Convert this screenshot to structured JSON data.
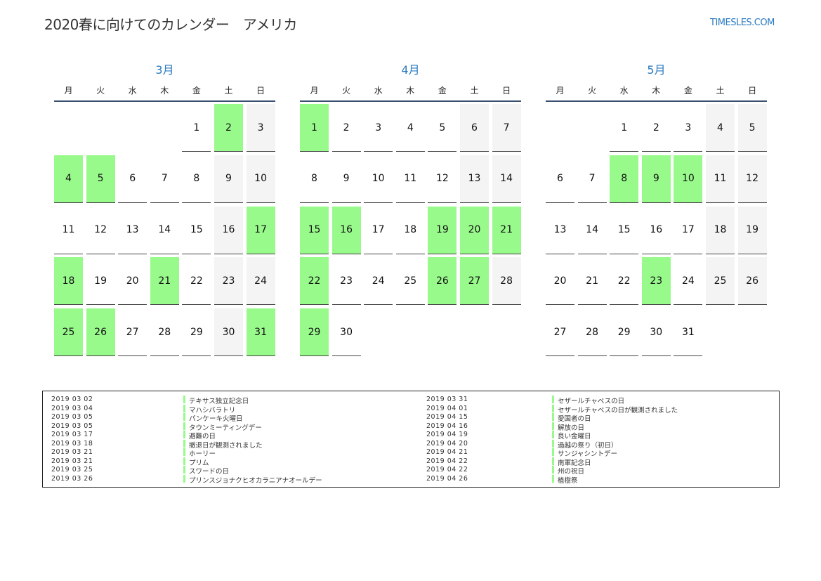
{
  "header": {
    "title": "2020春に向けてのカレンダー　アメリカ",
    "brand": "TIMESLES.COM"
  },
  "weekdays": [
    "月",
    "火",
    "水",
    "木",
    "金",
    "土",
    "日"
  ],
  "colors": {
    "highlight": "#99fa8c",
    "weekend": "#f4f4f4",
    "accent": "#2a7ac0"
  },
  "months": [
    {
      "label": "3月",
      "start_weekday_index": 4,
      "days": 31,
      "highlighted": [
        2,
        4,
        5,
        17,
        18,
        21,
        25,
        26,
        31
      ]
    },
    {
      "label": "4月",
      "start_weekday_index": 0,
      "days": 30,
      "highlighted": [
        1,
        15,
        16,
        19,
        20,
        21,
        22,
        26,
        27,
        29
      ]
    },
    {
      "label": "5月",
      "start_weekday_index": 2,
      "days": 31,
      "highlighted": [
        8,
        9,
        10,
        23
      ]
    }
  ],
  "holidays_left": [
    {
      "date": "2019 03 02",
      "name": "テキサス独立記念日"
    },
    {
      "date": "2019 03 04",
      "name": "マハシバラトリ"
    },
    {
      "date": "2019 03 05",
      "name": "パンケーキ火曜日"
    },
    {
      "date": "2019 03 05",
      "name": "タウンミーティングデー"
    },
    {
      "date": "2019 03 17",
      "name": "避難の日"
    },
    {
      "date": "2019 03 18",
      "name": "撤退日が観測されました"
    },
    {
      "date": "2019 03 21",
      "name": "ホーリー"
    },
    {
      "date": "2019 03 21",
      "name": "プリム"
    },
    {
      "date": "2019 03 25",
      "name": "スワードの日"
    },
    {
      "date": "2019 03 26",
      "name": "プリンスジョナクヒオカラニアナオールデー"
    }
  ],
  "holidays_right": [
    {
      "date": "2019 03 31",
      "name": "セザールチャベスの日"
    },
    {
      "date": "2019 04 01",
      "name": "セザールチャベスの日が観測されました"
    },
    {
      "date": "2019 04 15",
      "name": "愛国者の日"
    },
    {
      "date": "2019 04 16",
      "name": "解放の日"
    },
    {
      "date": "2019 04 19",
      "name": "良い金曜日"
    },
    {
      "date": "2019 04 20",
      "name": "過越の祭り（初日）"
    },
    {
      "date": "2019 04 21",
      "name": "サンジャシントデー"
    },
    {
      "date": "2019 04 22",
      "name": "南軍記念日"
    },
    {
      "date": "2019 04 22",
      "name": "州の祝日"
    },
    {
      "date": "2019 04 26",
      "name": "植樹祭"
    }
  ]
}
